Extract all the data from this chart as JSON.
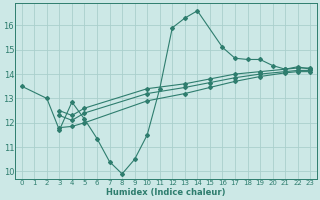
{
  "line1_x": [
    0,
    2,
    3,
    4,
    5,
    6,
    7,
    8,
    9,
    10,
    11,
    12,
    13,
    14,
    16,
    17,
    18,
    19,
    20,
    21,
    22,
    23
  ],
  "line1_y": [
    13.5,
    13.0,
    11.7,
    12.85,
    12.15,
    11.35,
    10.4,
    9.9,
    10.5,
    11.5,
    13.4,
    15.9,
    16.3,
    16.6,
    15.1,
    14.65,
    14.6,
    14.6,
    14.35,
    14.2,
    14.3,
    14.2
  ],
  "line2_x": [
    3,
    4,
    5,
    10,
    13,
    15,
    17,
    19,
    21,
    22,
    23
  ],
  "line2_y": [
    12.5,
    12.3,
    12.6,
    13.4,
    13.6,
    13.8,
    14.0,
    14.1,
    14.2,
    14.25,
    14.25
  ],
  "line3_x": [
    3,
    4,
    5,
    10,
    13,
    15,
    17,
    19,
    21,
    22,
    23
  ],
  "line3_y": [
    12.3,
    12.1,
    12.4,
    13.2,
    13.45,
    13.65,
    13.85,
    14.0,
    14.1,
    14.15,
    14.15
  ],
  "line4_x": [
    3,
    4,
    5,
    10,
    13,
    15,
    17,
    19,
    21,
    22,
    23
  ],
  "line4_y": [
    11.8,
    11.85,
    12.0,
    12.9,
    13.2,
    13.45,
    13.7,
    13.9,
    14.05,
    14.1,
    14.1
  ],
  "color": "#2e7d6e",
  "bg_color": "#cce8e6",
  "grid_color": "#aacfcc",
  "xlabel": "Humidex (Indice chaleur)",
  "xlim": [
    -0.5,
    23.5
  ],
  "ylim": [
    9.7,
    16.9
  ],
  "yticks": [
    10,
    11,
    12,
    13,
    14,
    15,
    16
  ],
  "xticks": [
    0,
    1,
    2,
    3,
    4,
    5,
    6,
    7,
    8,
    9,
    10,
    11,
    12,
    13,
    14,
    15,
    16,
    17,
    18,
    19,
    20,
    21,
    22,
    23
  ]
}
